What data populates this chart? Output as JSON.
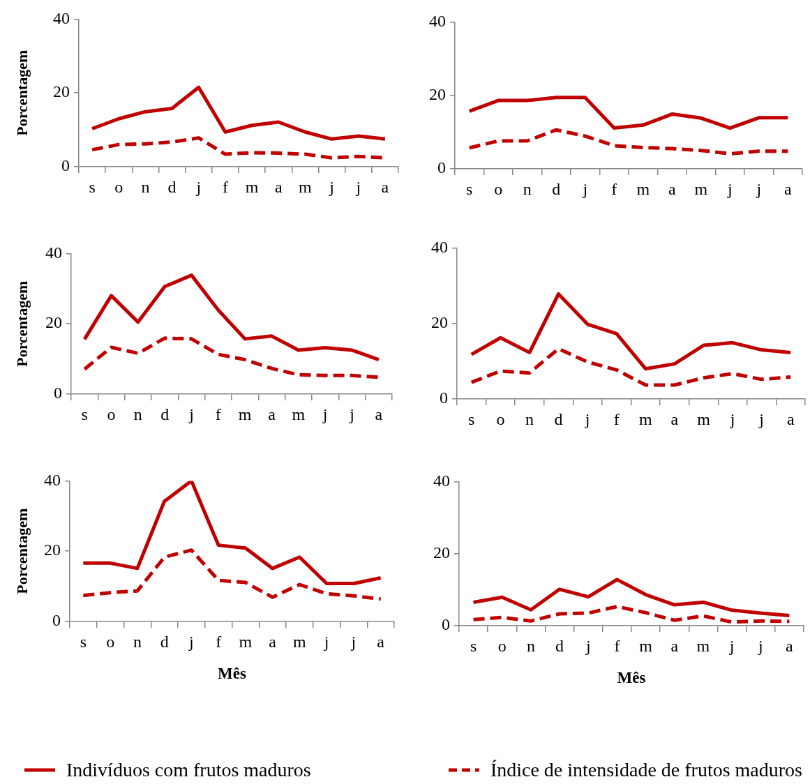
{
  "chart_data": [
    {
      "type": "line",
      "ylabel": "Porcentagem",
      "categories": [
        "s",
        "o",
        "n",
        "d",
        "j",
        "f",
        "m",
        "a",
        "m",
        "j",
        "j",
        "a"
      ],
      "ylim": [
        0,
        40
      ],
      "yticks": [
        0,
        20,
        40
      ],
      "marker": "none",
      "series": [
        {
          "color": "#c00000",
          "line_style": "solid",
          "values": [
            10.3,
            13.0,
            14.9,
            15.8,
            21.5,
            9.4,
            11.2,
            12.1,
            9.4,
            7.5,
            8.3,
            7.5
          ]
        },
        {
          "color": "#c00000",
          "line_style": "dashed",
          "values": [
            4.6,
            6.0,
            6.2,
            6.7,
            7.8,
            3.4,
            3.8,
            3.7,
            3.4,
            2.4,
            2.8,
            2.4
          ]
        }
      ]
    },
    {
      "type": "line",
      "categories": [
        "s",
        "o",
        "n",
        "d",
        "j",
        "f",
        "m",
        "a",
        "m",
        "j",
        "j",
        "a"
      ],
      "ylim": [
        0,
        40
      ],
      "yticks": [
        0,
        20,
        40
      ],
      "marker": "none",
      "series": [
        {
          "color": "#c00000",
          "line_style": "solid",
          "values": [
            15.7,
            18.6,
            18.6,
            19.4,
            19.4,
            11.1,
            11.9,
            14.9,
            13.8,
            11.1,
            13.9,
            13.9
          ]
        },
        {
          "color": "#c00000",
          "line_style": "dashed",
          "values": [
            5.7,
            7.6,
            7.6,
            10.6,
            8.9,
            6.3,
            5.8,
            5.5,
            5.0,
            4.1,
            4.8,
            4.8
          ]
        }
      ]
    },
    {
      "type": "line",
      "ylabel": "Porcentagem",
      "categories": [
        "s",
        "o",
        "n",
        "d",
        "j",
        "f",
        "m",
        "a",
        "m",
        "j",
        "j",
        "a"
      ],
      "ylim": [
        0,
        40
      ],
      "yticks": [
        0,
        20,
        40
      ],
      "marker": "none",
      "series": [
        {
          "color": "#c00000",
          "line_style": "solid",
          "values": [
            15.6,
            28.0,
            20.5,
            30.6,
            33.8,
            23.9,
            15.7,
            16.5,
            12.5,
            13.2,
            12.5,
            9.8
          ]
        },
        {
          "color": "#c00000",
          "line_style": "dashed",
          "values": [
            7.1,
            13.3,
            11.6,
            15.9,
            15.7,
            11.3,
            9.8,
            7.3,
            5.5,
            5.3,
            5.3,
            4.8
          ]
        }
      ]
    },
    {
      "type": "line",
      "categories": [
        "s",
        "o",
        "n",
        "d",
        "j",
        "f",
        "m",
        "a",
        "m",
        "j",
        "j",
        "a"
      ],
      "ylim": [
        0,
        40
      ],
      "yticks": [
        0,
        20,
        40
      ],
      "marker": "none",
      "series": [
        {
          "color": "#c00000",
          "line_style": "solid",
          "values": [
            11.8,
            16.2,
            12.3,
            27.8,
            19.8,
            17.3,
            8.0,
            9.3,
            14.2,
            14.9,
            13.0,
            12.3
          ]
        },
        {
          "color": "#c00000",
          "line_style": "dashed",
          "values": [
            4.4,
            7.4,
            6.9,
            13.3,
            9.8,
            7.7,
            3.7,
            3.7,
            5.6,
            6.7,
            5.2,
            5.8
          ]
        }
      ]
    },
    {
      "type": "line",
      "xlabel": "Mês",
      "ylabel": "Porcentagem",
      "categories": [
        "s",
        "o",
        "n",
        "d",
        "j",
        "f",
        "m",
        "a",
        "m",
        "j",
        "j",
        "a"
      ],
      "ylim": [
        0,
        40
      ],
      "yticks": [
        0,
        20,
        40
      ],
      "marker": "none",
      "series": [
        {
          "color": "#c00000",
          "line_style": "solid",
          "values": [
            16.6,
            16.6,
            15.1,
            34.2,
            40.0,
            21.7,
            20.9,
            15.1,
            18.3,
            10.8,
            10.8,
            12.4
          ]
        },
        {
          "color": "#c00000",
          "line_style": "dashed",
          "values": [
            7.4,
            8.2,
            8.7,
            18.3,
            20.3,
            11.7,
            11.1,
            6.9,
            10.5,
            7.9,
            7.3,
            6.4
          ]
        }
      ]
    },
    {
      "type": "line",
      "xlabel": "Mês",
      "categories": [
        "s",
        "o",
        "n",
        "d",
        "j",
        "f",
        "m",
        "a",
        "m",
        "j",
        "j",
        "a"
      ],
      "ylim": [
        0,
        40
      ],
      "yticks": [
        0,
        20,
        40
      ],
      "marker": "none",
      "legend": "bottom",
      "series": [
        {
          "name": "Indivíduos com frutos maduros",
          "color": "#c00000",
          "line_style": "solid",
          "values": [
            6.5,
            7.9,
            4.4,
            10.1,
            8.0,
            12.8,
            8.6,
            5.8,
            6.5,
            4.3,
            3.5,
            2.8
          ]
        },
        {
          "name": "Índice de intensidade de frutos maduros",
          "color": "#c00000",
          "line_style": "dashed",
          "values": [
            1.7,
            2.3,
            1.3,
            3.3,
            3.5,
            5.3,
            3.6,
            1.5,
            2.7,
            1.0,
            1.3,
            1.2
          ]
        }
      ]
    }
  ]
}
